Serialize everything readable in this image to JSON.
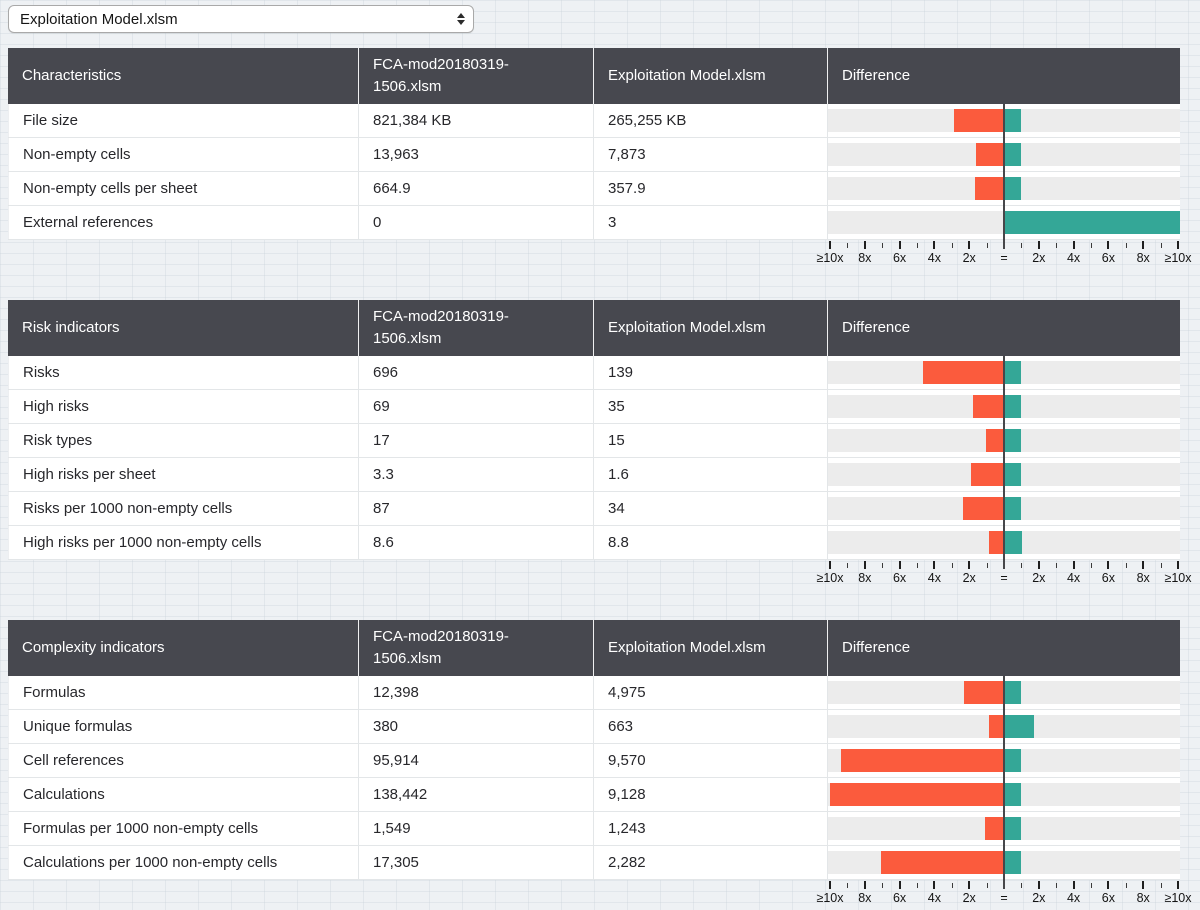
{
  "file_selector": {
    "value": "Exploitation Model.xlsm"
  },
  "axis": {
    "labels": [
      "≥10x",
      "8x",
      "6x",
      "4x",
      "2x",
      "=",
      "2x",
      "4x",
      "6x",
      "8x",
      "≥10x"
    ]
  },
  "colors": {
    "header_bg": "#47484f",
    "header_text": "#ffffff",
    "bar_left_orange": "#fb5b3d",
    "bar_right_teal": "#34a797",
    "track_gray": "#ececec",
    "center_line": "#47474a",
    "page_bg": "#eef1f4"
  },
  "tables": [
    {
      "title": "Characteristics",
      "columns": {
        "file1": "FCA-mod20180319-1506.xlsm",
        "file2": "Exploitation Model.xlsm",
        "diff": "Difference"
      },
      "rows": [
        {
          "label": "File size",
          "v1": "821,384 KB",
          "v2": "265,255 KB",
          "n1": 821384,
          "n2": 265255
        },
        {
          "label": "Non-empty cells",
          "v1": "13,963",
          "v2": "7,873",
          "n1": 13963,
          "n2": 7873
        },
        {
          "label": "Non-empty cells per sheet",
          "v1": "664.9",
          "v2": "357.9",
          "n1": 664.9,
          "n2": 357.9
        },
        {
          "label": "External references",
          "v1": "0",
          "v2": "3",
          "n1": 0,
          "n2": 3
        }
      ]
    },
    {
      "title": "Risk indicators",
      "columns": {
        "file1": "FCA-mod20180319-1506.xlsm",
        "file2": "Exploitation Model.xlsm",
        "diff": "Difference"
      },
      "rows": [
        {
          "label": "Risks",
          "v1": "696",
          "v2": "139",
          "n1": 696,
          "n2": 139
        },
        {
          "label": "High risks",
          "v1": "69",
          "v2": "35",
          "n1": 69,
          "n2": 35
        },
        {
          "label": "Risk types",
          "v1": "17",
          "v2": "15",
          "n1": 17,
          "n2": 15
        },
        {
          "label": "High risks per sheet",
          "v1": "3.3",
          "v2": "1.6",
          "n1": 3.3,
          "n2": 1.6
        },
        {
          "label": "Risks per 1000 non-empty cells",
          "v1": "87",
          "v2": "34",
          "n1": 87,
          "n2": 34
        },
        {
          "label": "High risks per 1000 non-empty cells",
          "v1": "8.6",
          "v2": "8.8",
          "n1": 8.6,
          "n2": 8.8
        }
      ]
    },
    {
      "title": "Complexity indicators",
      "columns": {
        "file1": "FCA-mod20180319-1506.xlsm",
        "file2": "Exploitation Model.xlsm",
        "diff": "Difference"
      },
      "rows": [
        {
          "label": "Formulas",
          "v1": "12,398",
          "v2": "4,975",
          "n1": 12398,
          "n2": 4975
        },
        {
          "label": "Unique formulas",
          "v1": "380",
          "v2": "663",
          "n1": 380,
          "n2": 663
        },
        {
          "label": "Cell references",
          "v1": "95,914",
          "v2": "9,570",
          "n1": 95914,
          "n2": 9570
        },
        {
          "label": "Calculations",
          "v1": "138,442",
          "v2": "9,128",
          "n1": 138442,
          "n2": 9128
        },
        {
          "label": "Formulas per 1000 non-empty cells",
          "v1": "1,549",
          "v2": "1,243",
          "n1": 1549,
          "n2": 1243
        },
        {
          "label": "Calculations per 1000 non-empty cells",
          "v1": "17,305",
          "v2": "2,282",
          "n1": 17305,
          "n2": 2282
        }
      ]
    }
  ]
}
